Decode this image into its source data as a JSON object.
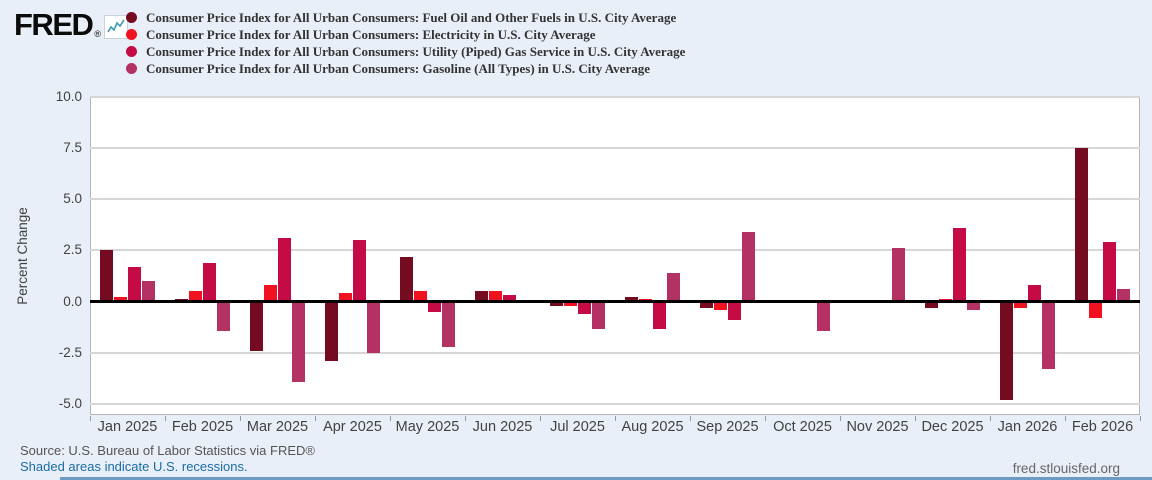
{
  "page": {
    "background": "#e9eff8",
    "link_color": "#1a6ca8",
    "bottom_strip_color": "#6d9bc3"
  },
  "logo": {
    "text": "FRED",
    "registered": "®"
  },
  "legend": {
    "items": [
      {
        "label": "Consumer Price Index for All Urban Consumers: Fuel Oil and Other Fuels in U.S. City Average",
        "color": "#750b21"
      },
      {
        "label": "Consumer Price Index for All Urban Consumers: Electricity in U.S. City Average",
        "color": "#f11220"
      },
      {
        "label": "Consumer Price Index for All Urban Consumers: Utility (Piped) Gas Service in U.S. City Average",
        "color": "#c40b45"
      },
      {
        "label": "Consumer Price Index for All Urban Consumers: Gasoline (All Types) in U.S. City Average",
        "color": "#b43263"
      }
    ]
  },
  "chart_data": {
    "type": "bar",
    "title": "",
    "xlabel": "",
    "ylabel": "Percent Change",
    "ylim": [
      -5.55,
      10.0
    ],
    "yticks": [
      10.0,
      7.5,
      5.0,
      2.5,
      0.0,
      -2.5,
      -5.0
    ],
    "grid": true,
    "legend_position": "top-left",
    "categories": [
      "Jan 2025",
      "Feb 2025",
      "Mar 2025",
      "Apr 2025",
      "May 2025",
      "Jun 2025",
      "Jul 2025",
      "Aug 2025",
      "Sep 2025",
      "Oct 2025",
      "Nov 2025",
      "Dec 2025",
      "Jan 2026",
      "Feb 2026"
    ],
    "series": [
      {
        "key": "fuel-oil",
        "name": "CPI Fuel Oil and Other Fuels",
        "color": "#750b21",
        "values": [
          2.5,
          0.1,
          -2.4,
          -2.9,
          2.2,
          0.5,
          -0.2,
          0.2,
          -0.3,
          0.0,
          0.0,
          -0.3,
          -4.8,
          7.5
        ]
      },
      {
        "key": "electricity",
        "name": "CPI Electricity",
        "color": "#f11220",
        "values": [
          0.2,
          0.5,
          0.8,
          0.4,
          0.5,
          0.5,
          -0.2,
          0.1,
          -0.4,
          0.0,
          0.0,
          0.1,
          -0.3,
          -0.8
        ]
      },
      {
        "key": "utility-gas",
        "name": "CPI Utility (Piped) Gas Service",
        "color": "#c40b45",
        "values": [
          1.7,
          1.9,
          3.1,
          3.0,
          -0.5,
          0.3,
          -0.6,
          -1.3,
          -0.9,
          0.0,
          0.0,
          3.6,
          0.8,
          2.9
        ]
      },
      {
        "key": "gasoline",
        "name": "CPI Gasoline (All Types)",
        "color": "#b43263",
        "values": [
          1.0,
          -1.4,
          -3.9,
          -2.5,
          -2.2,
          0.0,
          -1.3,
          1.4,
          3.4,
          -1.4,
          2.6,
          -0.4,
          -3.3,
          0.6
        ]
      }
    ]
  },
  "footer": {
    "source": "Source: U.S. Bureau of Labor Statistics via FRED®",
    "recessions_note": "Shaded areas indicate U.S. recessions.",
    "site": "fred.stlouisfed.org"
  }
}
